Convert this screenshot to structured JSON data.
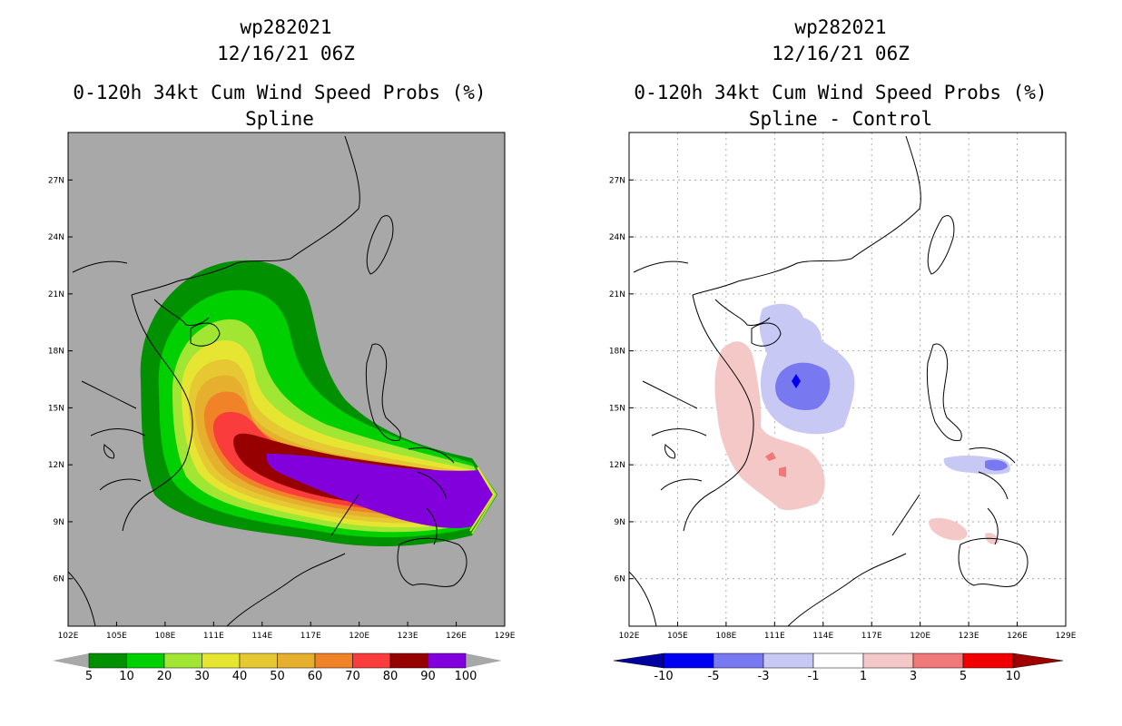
{
  "panels": [
    {
      "title_line1": "wp282021",
      "title_line2": "12/16/21 06Z",
      "title_line3": "0-120h 34kt Cum Wind Speed Probs (%)",
      "title_line4": "Spline"
    },
    {
      "title_line1": "wp282021",
      "title_line2": "12/16/21 06Z",
      "title_line3": "0-120h 34kt Cum Wind Speed Probs (%)",
      "title_line4": "Spline - Control"
    }
  ],
  "chart_data": [
    {
      "type": "heatmap",
      "title": "0-120h 34kt Cum Wind Speed Probs (%) Spline",
      "storm_id": "wp282021",
      "datetime": "12/16/21 06Z",
      "x_ticks": [
        "102E",
        "105E",
        "108E",
        "111E",
        "114E",
        "117E",
        "120E",
        "123E",
        "126E",
        "129E"
      ],
      "y_ticks": [
        "6N",
        "9N",
        "12N",
        "15N",
        "18N",
        "21N",
        "24N",
        "27N"
      ],
      "xlim": [
        102,
        129
      ],
      "ylim": [
        3.5,
        29.5
      ],
      "background_color": "#a8a8a8",
      "colorbar": {
        "levels": [
          "5",
          "10",
          "20",
          "30",
          "40",
          "50",
          "60",
          "70",
          "80",
          "90",
          "100"
        ],
        "colors": [
          "#009000",
          "#00d000",
          "#a0e632",
          "#e6e632",
          "#e6c832",
          "#e6af2d",
          "#f08228",
          "#fa3c3c",
          "#960000",
          "#8200dc"
        ]
      },
      "probability_bands": [
        {
          "min": 5,
          "max": 10
        },
        {
          "min": 10,
          "max": 20
        },
        {
          "min": 20,
          "max": 30
        },
        {
          "min": 30,
          "max": 40
        },
        {
          "min": 40,
          "max": 50
        },
        {
          "min": 50,
          "max": 60
        },
        {
          "min": 60,
          "max": 70
        },
        {
          "min": 70,
          "max": 80
        },
        {
          "min": 80,
          "max": 90
        },
        {
          "min": 90,
          "max": 100
        }
      ]
    },
    {
      "type": "heatmap",
      "title": "0-120h 34kt Cum Wind Speed Probs (%) Spline - Control",
      "storm_id": "wp282021",
      "datetime": "12/16/21 06Z",
      "x_ticks": [
        "102E",
        "105E",
        "108E",
        "111E",
        "114E",
        "117E",
        "120E",
        "123E",
        "126E",
        "129E"
      ],
      "y_ticks": [
        "6N",
        "9N",
        "12N",
        "15N",
        "18N",
        "21N",
        "24N",
        "27N"
      ],
      "xlim": [
        102,
        129
      ],
      "ylim": [
        3.5,
        29.5
      ],
      "background_color": "#ffffff",
      "colorbar": {
        "levels": [
          "-10",
          "-5",
          "-3",
          "-1",
          "1",
          "3",
          "5",
          "10"
        ],
        "colors": [
          "#0000a0",
          "#0000f0",
          "#7878f0",
          "#c8c8f5",
          "#ffffff",
          "#f5c8c8",
          "#f07878",
          "#f00000",
          "#a00000"
        ]
      },
      "difference_regions": [
        {
          "center": [
            112.8,
            16.5
          ],
          "value_range": [
            -5,
            -3
          ]
        },
        {
          "center": [
            112.5,
            17.5
          ],
          "value_range": [
            -3,
            -1
          ]
        },
        {
          "center": [
            110.0,
            13.0
          ],
          "value_range": [
            1,
            3
          ]
        },
        {
          "center": [
            125.0,
            12.0
          ],
          "value_range": [
            -3,
            -1
          ]
        },
        {
          "center": [
            121.5,
            8.8
          ],
          "value_range": [
            1,
            3
          ]
        }
      ]
    }
  ]
}
